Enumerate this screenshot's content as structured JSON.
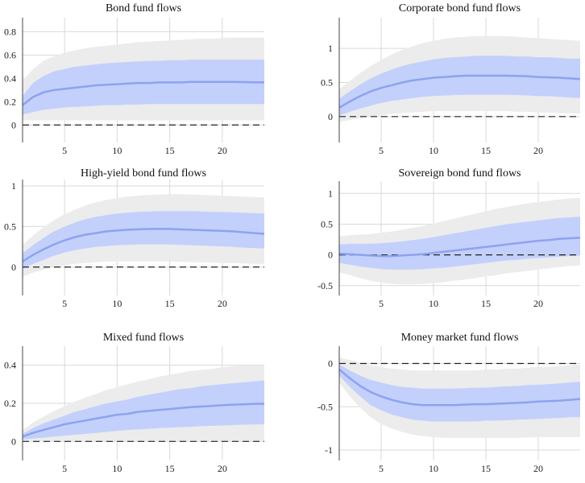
{
  "colors": {
    "outer_band": "#ececec",
    "inner_band": "#c2d0fb",
    "median": "#8ea2f0",
    "zero_line": "#222222",
    "grid": "#d9d9d9"
  },
  "chart_data": [
    {
      "type": "line",
      "title": "Bond fund flows",
      "x": [
        1,
        2,
        3,
        4,
        5,
        6,
        7,
        8,
        9,
        10,
        11,
        12,
        13,
        14,
        15,
        16,
        17,
        18,
        19,
        20,
        21,
        22,
        23,
        24
      ],
      "median": [
        0.17,
        0.24,
        0.28,
        0.3,
        0.31,
        0.32,
        0.33,
        0.34,
        0.345,
        0.35,
        0.355,
        0.36,
        0.36,
        0.365,
        0.365,
        0.365,
        0.37,
        0.37,
        0.37,
        0.37,
        0.37,
        0.368,
        0.366,
        0.365
      ],
      "inner_lower": [
        0.09,
        0.11,
        0.13,
        0.14,
        0.15,
        0.155,
        0.16,
        0.165,
        0.17,
        0.17,
        0.175,
        0.175,
        0.18,
        0.18,
        0.18,
        0.18,
        0.18,
        0.18,
        0.18,
        0.18,
        0.18,
        0.18,
        0.18,
        0.18
      ],
      "inner_upper": [
        0.25,
        0.36,
        0.42,
        0.46,
        0.48,
        0.5,
        0.51,
        0.52,
        0.53,
        0.535,
        0.54,
        0.545,
        0.55,
        0.55,
        0.555,
        0.555,
        0.56,
        0.56,
        0.56,
        0.56,
        0.56,
        0.56,
        0.56,
        0.56
      ],
      "outer_lower": [
        0.04,
        0.04,
        0.04,
        0.04,
        0.04,
        0.04,
        0.04,
        0.04,
        0.04,
        0.04,
        0.04,
        0.04,
        0.04,
        0.04,
        0.04,
        0.04,
        0.04,
        0.04,
        0.04,
        0.04,
        0.04,
        0.04,
        0.04,
        0.04
      ],
      "outer_upper": [
        0.38,
        0.48,
        0.55,
        0.59,
        0.62,
        0.64,
        0.66,
        0.67,
        0.68,
        0.69,
        0.7,
        0.71,
        0.715,
        0.72,
        0.725,
        0.73,
        0.735,
        0.74,
        0.74,
        0.745,
        0.75,
        0.75,
        0.75,
        0.75
      ],
      "xlim": [
        1,
        24
      ],
      "ylim": [
        -0.15,
        0.92
      ],
      "xticks": [
        5,
        10,
        15,
        20
      ],
      "yticks": [
        0,
        0.2,
        0.4,
        0.6,
        0.8
      ],
      "ytick_labels": [
        "0",
        "0.2",
        "0.4",
        "0.6",
        "0.8"
      ],
      "xtick_labels": [
        "5",
        "10",
        "15",
        "20"
      ]
    },
    {
      "type": "line",
      "title": "Corporate bond fund flows",
      "x": [
        1,
        2,
        3,
        4,
        5,
        6,
        7,
        8,
        9,
        10,
        11,
        12,
        13,
        14,
        15,
        16,
        17,
        18,
        19,
        20,
        21,
        22,
        23,
        24
      ],
      "median": [
        0.13,
        0.22,
        0.3,
        0.37,
        0.42,
        0.46,
        0.5,
        0.53,
        0.55,
        0.57,
        0.58,
        0.59,
        0.6,
        0.6,
        0.6,
        0.6,
        0.6,
        0.595,
        0.59,
        0.58,
        0.575,
        0.57,
        0.56,
        0.55
      ],
      "inner_lower": [
        0.02,
        0.07,
        0.12,
        0.16,
        0.2,
        0.23,
        0.25,
        0.27,
        0.29,
        0.3,
        0.31,
        0.315,
        0.32,
        0.32,
        0.32,
        0.32,
        0.32,
        0.315,
        0.31,
        0.3,
        0.3,
        0.29,
        0.28,
        0.27
      ],
      "inner_upper": [
        0.26,
        0.37,
        0.47,
        0.56,
        0.63,
        0.69,
        0.74,
        0.78,
        0.81,
        0.84,
        0.86,
        0.87,
        0.88,
        0.89,
        0.89,
        0.89,
        0.89,
        0.88,
        0.88,
        0.87,
        0.87,
        0.86,
        0.85,
        0.85
      ],
      "outer_lower": [
        -0.08,
        -0.05,
        -0.02,
        0.0,
        0.02,
        0.04,
        0.05,
        0.06,
        0.07,
        0.08,
        0.08,
        0.08,
        0.08,
        0.08,
        0.08,
        0.08,
        0.08,
        0.07,
        0.07,
        0.06,
        0.06,
        0.05,
        0.05,
        0.04
      ],
      "outer_upper": [
        0.4,
        0.52,
        0.64,
        0.74,
        0.83,
        0.91,
        0.98,
        1.03,
        1.08,
        1.11,
        1.14,
        1.16,
        1.17,
        1.18,
        1.18,
        1.18,
        1.18,
        1.17,
        1.16,
        1.15,
        1.14,
        1.13,
        1.12,
        1.11
      ],
      "xlim": [
        1,
        24
      ],
      "ylim": [
        -0.38,
        1.45
      ],
      "xticks": [
        5,
        10,
        15,
        20
      ],
      "yticks": [
        0,
        0.5,
        1
      ],
      "ytick_labels": [
        "0",
        "0.5",
        "1"
      ],
      "xtick_labels": [
        "5",
        "10",
        "15",
        "20"
      ]
    },
    {
      "type": "line",
      "title": "High-yield bond fund flows",
      "x": [
        1,
        2,
        3,
        4,
        5,
        6,
        7,
        8,
        9,
        10,
        11,
        12,
        13,
        14,
        15,
        16,
        17,
        18,
        19,
        20,
        21,
        22,
        23,
        24
      ],
      "median": [
        0.07,
        0.15,
        0.22,
        0.28,
        0.33,
        0.37,
        0.4,
        0.42,
        0.44,
        0.45,
        0.46,
        0.465,
        0.47,
        0.47,
        0.47,
        0.465,
        0.46,
        0.455,
        0.45,
        0.445,
        0.44,
        0.43,
        0.42,
        0.41
      ],
      "inner_lower": [
        -0.02,
        0.04,
        0.09,
        0.14,
        0.18,
        0.21,
        0.23,
        0.25,
        0.26,
        0.27,
        0.275,
        0.28,
        0.28,
        0.28,
        0.28,
        0.275,
        0.27,
        0.265,
        0.26,
        0.255,
        0.25,
        0.24,
        0.235,
        0.23
      ],
      "inner_upper": [
        0.17,
        0.27,
        0.36,
        0.44,
        0.5,
        0.55,
        0.59,
        0.62,
        0.64,
        0.66,
        0.67,
        0.68,
        0.685,
        0.69,
        0.69,
        0.69,
        0.69,
        0.685,
        0.68,
        0.68,
        0.675,
        0.67,
        0.665,
        0.66
      ],
      "outer_lower": [
        -0.12,
        -0.07,
        -0.03,
        0.0,
        0.02,
        0.04,
        0.05,
        0.06,
        0.07,
        0.07,
        0.07,
        0.07,
        0.07,
        0.07,
        0.07,
        0.065,
        0.06,
        0.06,
        0.055,
        0.05,
        0.05,
        0.045,
        0.04,
        0.04
      ],
      "outer_upper": [
        0.27,
        0.39,
        0.49,
        0.58,
        0.65,
        0.71,
        0.76,
        0.8,
        0.83,
        0.85,
        0.87,
        0.88,
        0.89,
        0.895,
        0.9,
        0.9,
        0.895,
        0.89,
        0.885,
        0.88,
        0.875,
        0.87,
        0.865,
        0.86
      ],
      "xlim": [
        1,
        24
      ],
      "ylim": [
        -0.35,
        1.08
      ],
      "xticks": [
        5,
        10,
        15,
        20
      ],
      "yticks": [
        0,
        0.5,
        1
      ],
      "ytick_labels": [
        "0",
        "0.5",
        "1"
      ],
      "xtick_labels": [
        "5",
        "10",
        "15",
        "20"
      ]
    },
    {
      "type": "line",
      "title": "Sovereign bond fund flows",
      "x": [
        1,
        2,
        3,
        4,
        5,
        6,
        7,
        8,
        9,
        10,
        11,
        12,
        13,
        14,
        15,
        16,
        17,
        18,
        19,
        20,
        21,
        22,
        23,
        24
      ],
      "median": [
        0.02,
        0.01,
        0.0,
        -0.01,
        -0.02,
        -0.02,
        -0.01,
        0.0,
        0.01,
        0.03,
        0.05,
        0.07,
        0.09,
        0.11,
        0.13,
        0.15,
        0.17,
        0.19,
        0.21,
        0.23,
        0.24,
        0.26,
        0.27,
        0.28
      ],
      "inner_lower": [
        -0.13,
        -0.16,
        -0.19,
        -0.21,
        -0.23,
        -0.24,
        -0.24,
        -0.24,
        -0.23,
        -0.22,
        -0.21,
        -0.19,
        -0.17,
        -0.15,
        -0.13,
        -0.11,
        -0.09,
        -0.08,
        -0.06,
        -0.05,
        -0.04,
        -0.03,
        -0.02,
        -0.01
      ],
      "inner_upper": [
        0.17,
        0.18,
        0.18,
        0.18,
        0.19,
        0.2,
        0.22,
        0.24,
        0.26,
        0.29,
        0.32,
        0.35,
        0.38,
        0.41,
        0.44,
        0.47,
        0.5,
        0.52,
        0.54,
        0.56,
        0.58,
        0.6,
        0.61,
        0.62
      ],
      "outer_lower": [
        -0.28,
        -0.33,
        -0.38,
        -0.42,
        -0.45,
        -0.47,
        -0.48,
        -0.48,
        -0.47,
        -0.46,
        -0.44,
        -0.42,
        -0.4,
        -0.38,
        -0.35,
        -0.33,
        -0.3,
        -0.28,
        -0.26,
        -0.24,
        -0.22,
        -0.2,
        -0.18,
        -0.17
      ],
      "outer_upper": [
        0.3,
        0.32,
        0.33,
        0.34,
        0.36,
        0.38,
        0.41,
        0.44,
        0.47,
        0.51,
        0.55,
        0.59,
        0.63,
        0.67,
        0.71,
        0.75,
        0.78,
        0.81,
        0.84,
        0.86,
        0.88,
        0.9,
        0.92,
        0.93
      ],
      "xlim": [
        1,
        24
      ],
      "ylim": [
        -0.66,
        1.2
      ],
      "xticks": [
        5,
        10,
        15,
        20
      ],
      "yticks": [
        -0.5,
        0,
        0.5,
        1
      ],
      "ytick_labels": [
        "-0.5",
        "0",
        "0.5",
        "1"
      ],
      "xtick_labels": [
        "5",
        "10",
        "15",
        "20"
      ]
    },
    {
      "type": "line",
      "title": "Mixed fund flows",
      "x": [
        1,
        2,
        3,
        4,
        5,
        6,
        7,
        8,
        9,
        10,
        11,
        12,
        13,
        14,
        15,
        16,
        17,
        18,
        19,
        20,
        21,
        22,
        23,
        24
      ],
      "median": [
        0.025,
        0.045,
        0.06,
        0.075,
        0.09,
        0.1,
        0.11,
        0.12,
        0.13,
        0.14,
        0.145,
        0.155,
        0.16,
        0.165,
        0.17,
        0.175,
        0.18,
        0.183,
        0.186,
        0.19,
        0.193,
        0.195,
        0.197,
        0.198
      ],
      "inner_lower": [
        0.01,
        0.015,
        0.02,
        0.025,
        0.03,
        0.035,
        0.04,
        0.045,
        0.05,
        0.055,
        0.06,
        0.063,
        0.066,
        0.07,
        0.072,
        0.075,
        0.077,
        0.08,
        0.082,
        0.084,
        0.086,
        0.088,
        0.089,
        0.09
      ],
      "inner_upper": [
        0.04,
        0.07,
        0.095,
        0.115,
        0.135,
        0.155,
        0.17,
        0.185,
        0.2,
        0.21,
        0.22,
        0.235,
        0.245,
        0.255,
        0.265,
        0.275,
        0.28,
        0.29,
        0.295,
        0.3,
        0.305,
        0.31,
        0.315,
        0.32
      ],
      "outer_lower": [
        -0.005,
        -0.005,
        -0.005,
        0.0,
        0.0,
        0.0,
        0.0,
        0.0,
        0.0,
        0.0,
        0.0,
        0.0,
        0.0,
        0.0,
        0.0,
        0.0,
        0.0,
        0.0,
        0.0,
        0.0,
        0.0,
        0.0,
        0.0,
        0.0
      ],
      "outer_upper": [
        0.06,
        0.1,
        0.13,
        0.16,
        0.185,
        0.21,
        0.23,
        0.25,
        0.27,
        0.285,
        0.3,
        0.315,
        0.325,
        0.34,
        0.35,
        0.36,
        0.37,
        0.375,
        0.38,
        0.39,
        0.395,
        0.4,
        0.4,
        0.4
      ],
      "xlim": [
        1,
        24
      ],
      "ylim": [
        -0.1,
        0.5
      ],
      "xticks": [
        5,
        10,
        15,
        20
      ],
      "yticks": [
        0,
        0.2,
        0.4
      ],
      "ytick_labels": [
        "0",
        "0.2",
        "0.4"
      ],
      "xtick_labels": [
        "5",
        "10",
        "15",
        "20"
      ]
    },
    {
      "type": "line",
      "title": "Money market fund flows",
      "x": [
        1,
        2,
        3,
        4,
        5,
        6,
        7,
        8,
        9,
        10,
        11,
        12,
        13,
        14,
        15,
        16,
        17,
        18,
        19,
        20,
        21,
        22,
        23,
        24
      ],
      "median": [
        -0.07,
        -0.17,
        -0.26,
        -0.33,
        -0.38,
        -0.42,
        -0.45,
        -0.47,
        -0.48,
        -0.48,
        -0.48,
        -0.48,
        -0.475,
        -0.47,
        -0.47,
        -0.465,
        -0.46,
        -0.455,
        -0.45,
        -0.44,
        -0.435,
        -0.43,
        -0.42,
        -0.41
      ],
      "inner_lower": [
        -0.14,
        -0.27,
        -0.38,
        -0.48,
        -0.54,
        -0.59,
        -0.62,
        -0.65,
        -0.66,
        -0.67,
        -0.67,
        -0.67,
        -0.67,
        -0.67,
        -0.66,
        -0.66,
        -0.655,
        -0.65,
        -0.645,
        -0.64,
        -0.635,
        -0.63,
        -0.62,
        -0.62
      ],
      "inner_upper": [
        -0.01,
        -0.08,
        -0.14,
        -0.19,
        -0.22,
        -0.25,
        -0.27,
        -0.28,
        -0.29,
        -0.29,
        -0.29,
        -0.29,
        -0.285,
        -0.28,
        -0.28,
        -0.27,
        -0.265,
        -0.26,
        -0.25,
        -0.245,
        -0.24,
        -0.23,
        -0.22,
        -0.21
      ],
      "outer_lower": [
        -0.22,
        -0.38,
        -0.51,
        -0.62,
        -0.7,
        -0.75,
        -0.79,
        -0.82,
        -0.84,
        -0.85,
        -0.86,
        -0.86,
        -0.86,
        -0.86,
        -0.86,
        -0.86,
        -0.86,
        -0.86,
        -0.855,
        -0.85,
        -0.85,
        -0.85,
        -0.85,
        -0.85
      ],
      "outer_upper": [
        0.07,
        0.04,
        0.01,
        -0.02,
        -0.04,
        -0.06,
        -0.07,
        -0.08,
        -0.08,
        -0.08,
        -0.08,
        -0.08,
        -0.08,
        -0.08,
        -0.07,
        -0.07,
        -0.06,
        -0.06,
        -0.05,
        -0.04,
        -0.04,
        -0.03,
        -0.02,
        -0.01
      ],
      "xlim": [
        1,
        24
      ],
      "ylim": [
        -1.12,
        0.2
      ],
      "xticks": [
        5,
        10,
        15,
        20
      ],
      "yticks": [
        -1,
        -0.5,
        0
      ],
      "ytick_labels": [
        "-1",
        "-0.5",
        "0"
      ],
      "xtick_labels": [
        "5",
        "10",
        "15",
        "20"
      ]
    }
  ]
}
